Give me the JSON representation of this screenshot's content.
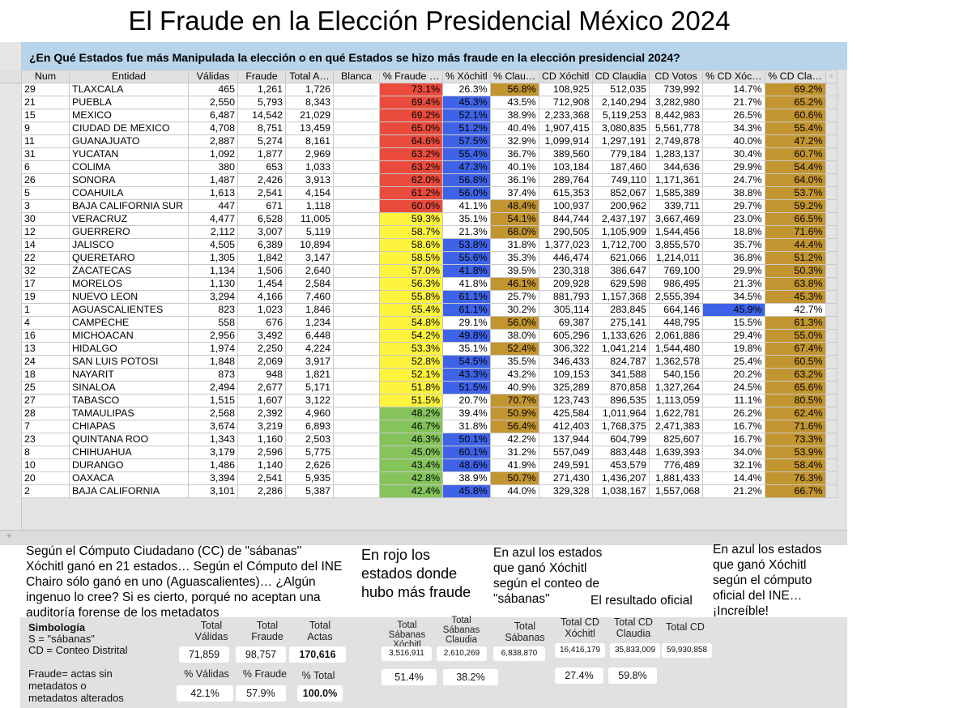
{
  "title": "El Fraude en la Elección Presidencial México 2024",
  "banner": "¿En Qué Estados fue más Manipulada la elección o en qué Estados se hizo más fraude en la elección presidencial 2024?",
  "columns": [
    "Num",
    "Entidad",
    "Válidas",
    "Fraude",
    "Total A…",
    "Blanca",
    "% Fraude …",
    "% Xóchitl",
    "% Clau…",
    "CD Xóchitl",
    "CD Claudia",
    "CD Votos",
    "% CD Xóc…",
    "% CD Cla…"
  ],
  "colors": {
    "red": "#ea4b3c",
    "yellow": "#fef33d",
    "green": "#84c45a",
    "blue": "#3f63e8",
    "gold": "#c29530",
    "banner": "#b8d4ea"
  },
  "rows": [
    {
      "num": "29",
      "entidad": "TLAXCALA",
      "validas": "465",
      "fraude": "1,261",
      "total": "1,726",
      "pct_fraude": "73.1%",
      "pct_x": "26.3%",
      "pct_c": "56.8%",
      "cd_x": "108,925",
      "cd_c": "512,035",
      "cd_votos": "739,992",
      "pct_cd_x": "14.7%",
      "pct_cd_c": "69.2%",
      "f": "red",
      "x": "",
      "c": "gold",
      "cdx": "",
      "cdc": "gold"
    },
    {
      "num": "21",
      "entidad": "PUEBLA",
      "validas": "2,550",
      "fraude": "5,793",
      "total": "8,343",
      "pct_fraude": "69.4%",
      "pct_x": "45.3%",
      "pct_c": "43.5%",
      "cd_x": "712,908",
      "cd_c": "2,140,294",
      "cd_votos": "3,282,980",
      "pct_cd_x": "21.7%",
      "pct_cd_c": "65.2%",
      "f": "red",
      "x": "blue",
      "c": "",
      "cdx": "",
      "cdc": "gold"
    },
    {
      "num": "15",
      "entidad": "MEXICO",
      "validas": "6,487",
      "fraude": "14,542",
      "total": "21,029",
      "pct_fraude": "69.2%",
      "pct_x": "52.1%",
      "pct_c": "38.9%",
      "cd_x": "2,233,368",
      "cd_c": "5,119,253",
      "cd_votos": "8,442,983",
      "pct_cd_x": "26.5%",
      "pct_cd_c": "60.6%",
      "f": "red",
      "x": "blue",
      "c": "",
      "cdx": "",
      "cdc": "gold"
    },
    {
      "num": "9",
      "entidad": "CIUDAD DE MEXICO",
      "validas": "4,708",
      "fraude": "8,751",
      "total": "13,459",
      "pct_fraude": "65.0%",
      "pct_x": "51.2%",
      "pct_c": "40.4%",
      "cd_x": "1,907,415",
      "cd_c": "3,080,835",
      "cd_votos": "5,561,778",
      "pct_cd_x": "34.3%",
      "pct_cd_c": "55.4%",
      "f": "red",
      "x": "blue",
      "c": "",
      "cdx": "",
      "cdc": "gold"
    },
    {
      "num": "11",
      "entidad": "GUANAJUATO",
      "validas": "2,887",
      "fraude": "5,274",
      "total": "8,161",
      "pct_fraude": "64.6%",
      "pct_x": "57.5%",
      "pct_c": "32.9%",
      "cd_x": "1,099,914",
      "cd_c": "1,297,191",
      "cd_votos": "2,749,878",
      "pct_cd_x": "40.0%",
      "pct_cd_c": "47.2%",
      "f": "red",
      "x": "blue",
      "c": "",
      "cdx": "",
      "cdc": "gold"
    },
    {
      "num": "31",
      "entidad": "YUCATAN",
      "validas": "1,092",
      "fraude": "1,877",
      "total": "2,969",
      "pct_fraude": "63.2%",
      "pct_x": "55.4%",
      "pct_c": "36.7%",
      "cd_x": "389,560",
      "cd_c": "779,184",
      "cd_votos": "1,283,137",
      "pct_cd_x": "30.4%",
      "pct_cd_c": "60.7%",
      "f": "red",
      "x": "blue",
      "c": "",
      "cdx": "",
      "cdc": "gold"
    },
    {
      "num": "6",
      "entidad": "COLIMA",
      "validas": "380",
      "fraude": "653",
      "total": "1,033",
      "pct_fraude": "63.2%",
      "pct_x": "47.3%",
      "pct_c": "40.1%",
      "cd_x": "103,184",
      "cd_c": "187,460",
      "cd_votos": "344,636",
      "pct_cd_x": "29.9%",
      "pct_cd_c": "54.4%",
      "f": "red",
      "x": "blue",
      "c": "",
      "cdx": "",
      "cdc": "gold"
    },
    {
      "num": "26",
      "entidad": "SONORA",
      "validas": "1,487",
      "fraude": "2,426",
      "total": "3,913",
      "pct_fraude": "62.0%",
      "pct_x": "56.8%",
      "pct_c": "36.1%",
      "cd_x": "289,764",
      "cd_c": "749,110",
      "cd_votos": "1,171,361",
      "pct_cd_x": "24.7%",
      "pct_cd_c": "64.0%",
      "f": "red",
      "x": "blue",
      "c": "",
      "cdx": "",
      "cdc": "gold"
    },
    {
      "num": "5",
      "entidad": "COAHUILA",
      "validas": "1,613",
      "fraude": "2,541",
      "total": "4,154",
      "pct_fraude": "61.2%",
      "pct_x": "56.0%",
      "pct_c": "37.4%",
      "cd_x": "615,353",
      "cd_c": "852,067",
      "cd_votos": "1,585,389",
      "pct_cd_x": "38.8%",
      "pct_cd_c": "53.7%",
      "f": "red",
      "x": "blue",
      "c": "",
      "cdx": "",
      "cdc": "gold"
    },
    {
      "num": "3",
      "entidad": "BAJA CALIFORNIA SUR",
      "validas": "447",
      "fraude": "671",
      "total": "1,118",
      "pct_fraude": "60.0%",
      "pct_x": "41.1%",
      "pct_c": "48.4%",
      "cd_x": "100,937",
      "cd_c": "200,962",
      "cd_votos": "339,711",
      "pct_cd_x": "29.7%",
      "pct_cd_c": "59.2%",
      "f": "red",
      "x": "",
      "c": "gold",
      "cdx": "",
      "cdc": "gold"
    },
    {
      "num": "30",
      "entidad": "VERACRUZ",
      "validas": "4,477",
      "fraude": "6,528",
      "total": "11,005",
      "pct_fraude": "59.3%",
      "pct_x": "35.1%",
      "pct_c": "54.1%",
      "cd_x": "844,744",
      "cd_c": "2,437,197",
      "cd_votos": "3,667,469",
      "pct_cd_x": "23.0%",
      "pct_cd_c": "66.5%",
      "f": "yel",
      "x": "",
      "c": "gold",
      "cdx": "",
      "cdc": "gold"
    },
    {
      "num": "12",
      "entidad": "GUERRERO",
      "validas": "2,112",
      "fraude": "3,007",
      "total": "5,119",
      "pct_fraude": "58.7%",
      "pct_x": "21.3%",
      "pct_c": "68.0%",
      "cd_x": "290,505",
      "cd_c": "1,105,909",
      "cd_votos": "1,544,456",
      "pct_cd_x": "18.8%",
      "pct_cd_c": "71.6%",
      "f": "yel",
      "x": "",
      "c": "gold",
      "cdx": "",
      "cdc": "gold"
    },
    {
      "num": "14",
      "entidad": "JALISCO",
      "validas": "4,505",
      "fraude": "6,389",
      "total": "10,894",
      "pct_fraude": "58.6%",
      "pct_x": "53.8%",
      "pct_c": "31.8%",
      "cd_x": "1,377,023",
      "cd_c": "1,712,700",
      "cd_votos": "3,855,570",
      "pct_cd_x": "35.7%",
      "pct_cd_c": "44.4%",
      "f": "yel",
      "x": "blue",
      "c": "",
      "cdx": "",
      "cdc": "gold"
    },
    {
      "num": "22",
      "entidad": "QUERETARO",
      "validas": "1,305",
      "fraude": "1,842",
      "total": "3,147",
      "pct_fraude": "58.5%",
      "pct_x": "55.6%",
      "pct_c": "35.3%",
      "cd_x": "446,474",
      "cd_c": "621,066",
      "cd_votos": "1,214,011",
      "pct_cd_x": "36.8%",
      "pct_cd_c": "51.2%",
      "f": "yel",
      "x": "blue",
      "c": "",
      "cdx": "",
      "cdc": "gold"
    },
    {
      "num": "32",
      "entidad": "ZACATECAS",
      "validas": "1,134",
      "fraude": "1,506",
      "total": "2,640",
      "pct_fraude": "57.0%",
      "pct_x": "41.8%",
      "pct_c": "39.5%",
      "cd_x": "230,318",
      "cd_c": "386,647",
      "cd_votos": "769,100",
      "pct_cd_x": "29.9%",
      "pct_cd_c": "50.3%",
      "f": "yel",
      "x": "blue",
      "c": "",
      "cdx": "",
      "cdc": "gold"
    },
    {
      "num": "17",
      "entidad": "MORELOS",
      "validas": "1,130",
      "fraude": "1,454",
      "total": "2,584",
      "pct_fraude": "56.3%",
      "pct_x": "41.8%",
      "pct_c": "46.1%",
      "cd_x": "209,928",
      "cd_c": "629,598",
      "cd_votos": "986,495",
      "pct_cd_x": "21.3%",
      "pct_cd_c": "63.8%",
      "f": "yel",
      "x": "",
      "c": "gold",
      "cdx": "",
      "cdc": "gold"
    },
    {
      "num": "19",
      "entidad": "NUEVO LEON",
      "validas": "3,294",
      "fraude": "4,166",
      "total": "7,460",
      "pct_fraude": "55.8%",
      "pct_x": "61.1%",
      "pct_c": "25.7%",
      "cd_x": "881,793",
      "cd_c": "1,157,368",
      "cd_votos": "2,555,394",
      "pct_cd_x": "34.5%",
      "pct_cd_c": "45.3%",
      "f": "yel",
      "x": "blue",
      "c": "",
      "cdx": "",
      "cdc": "gold"
    },
    {
      "num": "1",
      "entidad": "AGUASCALIENTES",
      "validas": "823",
      "fraude": "1,023",
      "total": "1,846",
      "pct_fraude": "55.4%",
      "pct_x": "61.1%",
      "pct_c": "30.2%",
      "cd_x": "305,114",
      "cd_c": "283,845",
      "cd_votos": "664,146",
      "pct_cd_x": "45.9%",
      "pct_cd_c": "42.7%",
      "f": "yel",
      "x": "blue",
      "c": "",
      "cdx": "blue",
      "cdc": ""
    },
    {
      "num": "4",
      "entidad": "CAMPECHE",
      "validas": "558",
      "fraude": "676",
      "total": "1,234",
      "pct_fraude": "54.8%",
      "pct_x": "29.1%",
      "pct_c": "56.0%",
      "cd_x": "69,387",
      "cd_c": "275,141",
      "cd_votos": "448,795",
      "pct_cd_x": "15.5%",
      "pct_cd_c": "61.3%",
      "f": "yel",
      "x": "",
      "c": "gold",
      "cdx": "",
      "cdc": "gold"
    },
    {
      "num": "16",
      "entidad": "MICHOACAN",
      "validas": "2,956",
      "fraude": "3,492",
      "total": "6,448",
      "pct_fraude": "54.2%",
      "pct_x": "49.8%",
      "pct_c": "38.0%",
      "cd_x": "605,296",
      "cd_c": "1,133,626",
      "cd_votos": "2,061,886",
      "pct_cd_x": "29.4%",
      "pct_cd_c": "55.0%",
      "f": "yel",
      "x": "blue",
      "c": "",
      "cdx": "",
      "cdc": "gold"
    },
    {
      "num": "13",
      "entidad": "HIDALGO",
      "validas": "1,974",
      "fraude": "2,250",
      "total": "4,224",
      "pct_fraude": "53.3%",
      "pct_x": "35.1%",
      "pct_c": "52.4%",
      "cd_x": "306,322",
      "cd_c": "1,041,214",
      "cd_votos": "1,544,480",
      "pct_cd_x": "19.8%",
      "pct_cd_c": "67.4%",
      "f": "yel",
      "x": "",
      "c": "gold",
      "cdx": "",
      "cdc": "gold"
    },
    {
      "num": "24",
      "entidad": "SAN LUIS POTOSI",
      "validas": "1,848",
      "fraude": "2,069",
      "total": "3,917",
      "pct_fraude": "52.8%",
      "pct_x": "54.5%",
      "pct_c": "35.5%",
      "cd_x": "346,433",
      "cd_c": "824,787",
      "cd_votos": "1,362,578",
      "pct_cd_x": "25.4%",
      "pct_cd_c": "60.5%",
      "f": "yel",
      "x": "blue",
      "c": "",
      "cdx": "",
      "cdc": "gold"
    },
    {
      "num": "18",
      "entidad": "NAYARIT",
      "validas": "873",
      "fraude": "948",
      "total": "1,821",
      "pct_fraude": "52.1%",
      "pct_x": "43.3%",
      "pct_c": "43.2%",
      "cd_x": "109,153",
      "cd_c": "341,588",
      "cd_votos": "540,156",
      "pct_cd_x": "20.2%",
      "pct_cd_c": "63.2%",
      "f": "yel",
      "x": "blue",
      "c": "",
      "cdx": "",
      "cdc": "gold"
    },
    {
      "num": "25",
      "entidad": "SINALOA",
      "validas": "2,494",
      "fraude": "2,677",
      "total": "5,171",
      "pct_fraude": "51.8%",
      "pct_x": "51.5%",
      "pct_c": "40.9%",
      "cd_x": "325,289",
      "cd_c": "870,858",
      "cd_votos": "1,327,264",
      "pct_cd_x": "24.5%",
      "pct_cd_c": "65.6%",
      "f": "yel",
      "x": "blue",
      "c": "",
      "cdx": "",
      "cdc": "gold"
    },
    {
      "num": "27",
      "entidad": "TABASCO",
      "validas": "1,515",
      "fraude": "1,607",
      "total": "3,122",
      "pct_fraude": "51.5%",
      "pct_x": "20.7%",
      "pct_c": "70.7%",
      "cd_x": "123,743",
      "cd_c": "896,535",
      "cd_votos": "1,113,059",
      "pct_cd_x": "11.1%",
      "pct_cd_c": "80.5%",
      "f": "yel",
      "x": "",
      "c": "gold",
      "cdx": "",
      "cdc": "gold"
    },
    {
      "num": "28",
      "entidad": "TAMAULIPAS",
      "validas": "2,568",
      "fraude": "2,392",
      "total": "4,960",
      "pct_fraude": "48.2%",
      "pct_x": "39.4%",
      "pct_c": "50.9%",
      "cd_x": "425,584",
      "cd_c": "1,011,964",
      "cd_votos": "1,622,781",
      "pct_cd_x": "26.2%",
      "pct_cd_c": "62.4%",
      "f": "grn",
      "x": "",
      "c": "gold",
      "cdx": "",
      "cdc": "gold"
    },
    {
      "num": "7",
      "entidad": "CHIAPAS",
      "validas": "3,674",
      "fraude": "3,219",
      "total": "6,893",
      "pct_fraude": "46.7%",
      "pct_x": "31.8%",
      "pct_c": "56.4%",
      "cd_x": "412,403",
      "cd_c": "1,768,375",
      "cd_votos": "2,471,383",
      "pct_cd_x": "16.7%",
      "pct_cd_c": "71.6%",
      "f": "grn",
      "x": "",
      "c": "gold",
      "cdx": "",
      "cdc": "gold"
    },
    {
      "num": "23",
      "entidad": "QUINTANA ROO",
      "validas": "1,343",
      "fraude": "1,160",
      "total": "2,503",
      "pct_fraude": "46.3%",
      "pct_x": "50.1%",
      "pct_c": "42.2%",
      "cd_x": "137,944",
      "cd_c": "604,799",
      "cd_votos": "825,607",
      "pct_cd_x": "16.7%",
      "pct_cd_c": "73.3%",
      "f": "grn",
      "x": "blue",
      "c": "",
      "cdx": "",
      "cdc": "gold"
    },
    {
      "num": "8",
      "entidad": "CHIHUAHUA",
      "validas": "3,179",
      "fraude": "2,596",
      "total": "5,775",
      "pct_fraude": "45.0%",
      "pct_x": "60.1%",
      "pct_c": "31.2%",
      "cd_x": "557,049",
      "cd_c": "883,448",
      "cd_votos": "1,639,393",
      "pct_cd_x": "34.0%",
      "pct_cd_c": "53.9%",
      "f": "grn",
      "x": "blue",
      "c": "",
      "cdx": "",
      "cdc": "gold"
    },
    {
      "num": "10",
      "entidad": "DURANGO",
      "validas": "1,486",
      "fraude": "1,140",
      "total": "2,626",
      "pct_fraude": "43.4%",
      "pct_x": "48.6%",
      "pct_c": "41.9%",
      "cd_x": "249,591",
      "cd_c": "453,579",
      "cd_votos": "776,489",
      "pct_cd_x": "32.1%",
      "pct_cd_c": "58.4%",
      "f": "grn",
      "x": "blue",
      "c": "",
      "cdx": "",
      "cdc": "gold"
    },
    {
      "num": "20",
      "entidad": "OAXACA",
      "validas": "3,394",
      "fraude": "2,541",
      "total": "5,935",
      "pct_fraude": "42.8%",
      "pct_x": "38.9%",
      "pct_c": "50.7%",
      "cd_x": "271,430",
      "cd_c": "1,436,207",
      "cd_votos": "1,881,433",
      "pct_cd_x": "14.4%",
      "pct_cd_c": "76.3%",
      "f": "grn",
      "x": "",
      "c": "gold",
      "cdx": "",
      "cdc": "gold"
    },
    {
      "num": "2",
      "entidad": "BAJA CALIFORNIA",
      "validas": "3,101",
      "fraude": "2,286",
      "total": "5,387",
      "pct_fraude": "42.4%",
      "pct_x": "45.8%",
      "pct_c": "44.0%",
      "cd_x": "329,328",
      "cd_c": "1,038,167",
      "cd_votos": "1,557,068",
      "pct_cd_x": "21.2%",
      "pct_cd_c": "66.7%",
      "f": "grn",
      "x": "blue",
      "c": "",
      "cdx": "",
      "cdc": "gold"
    }
  ],
  "notes": {
    "left": [
      "Según el Cómputo Ciudadano (CC) de \"sábanas\"",
      "Xóchitl ganó en 21 estados… Según el Cómputo del INE",
      "Chairo sólo ganó en uno (Aguascalientes)… ¿Algún",
      "ingenuo lo cree? Si es cierto, porqué no aceptan una",
      "auditoría forense de los metadatos"
    ],
    "red": [
      "En rojo los",
      "estados donde",
      "hubo más fraude"
    ],
    "blue_sabanas": [
      "En azul los estados",
      "que ganó Xóchitl",
      "según el conteo de",
      "\"sábanas\""
    ],
    "oficial": "El resultado oficial",
    "blue_ine": [
      "En azul los estados",
      "que ganó Xóchitl",
      "según el cómputo",
      "oficial del INE…",
      "¡Increíble!"
    ]
  },
  "summary": {
    "simbologia": "Simbología",
    "s_def": "S = \"sábanas\"",
    "cd_def": "CD = Conteo Distrital",
    "fraude_def": [
      "Fraude= actas sin",
      "metadatos o",
      "metadatos alterados"
    ],
    "total_validas_label": [
      "Total",
      "Válidas"
    ],
    "total_fraude_label": [
      "Total",
      "Fraude"
    ],
    "total_actas_label": [
      "Total",
      "Actas"
    ],
    "total_validas": "71,859",
    "total_fraude": "98,757",
    "total_actas": "170,616",
    "pct_validas_label": "% Válidas",
    "pct_fraude_label": "% Fraude",
    "pct_total_label": "% Total",
    "pct_validas": "42.1%",
    "pct_fraude": "57.9%",
    "pct_total": "100.0%",
    "sab_x_label": [
      "Total",
      "Sábanas",
      "Xóchitl"
    ],
    "sab_c_label": [
      "Total",
      "Sábanas",
      "Claudia"
    ],
    "sab_label": [
      "Total",
      "Sábanas"
    ],
    "sab_x": "3,516,911",
    "sab_c": "2,610,269",
    "sab": "6,838,870",
    "sab_x_pct": "51.4%",
    "sab_c_pct": "38.2%",
    "cd_x_label": [
      "Total CD",
      "Xóchitl"
    ],
    "cd_c_label": [
      "Total CD",
      "Claudia"
    ],
    "cd_label": "Total CD",
    "cd_x": "16,416,179",
    "cd_c": "35,833,009",
    "cd": "59,930,858",
    "cd_x_pct": "27.4%",
    "cd_c_pct": "59.8%"
  }
}
